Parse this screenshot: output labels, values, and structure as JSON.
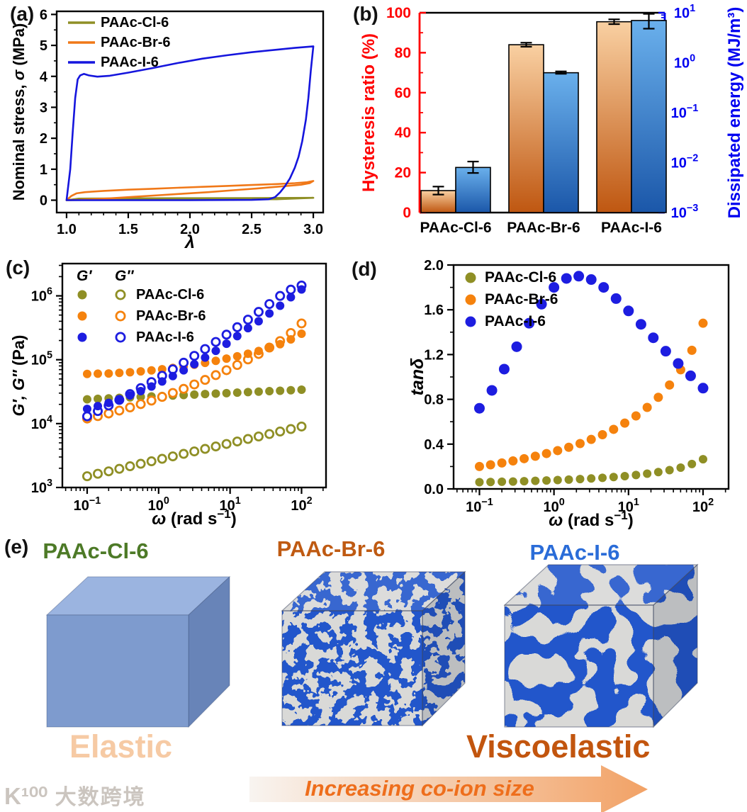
{
  "figure": {
    "labels": {
      "a": "(a)",
      "b": "(b)",
      "c": "(c)",
      "d": "(d)",
      "e": "(e)"
    }
  },
  "chart_data": [
    {
      "panel": "a",
      "type": "line",
      "title": "",
      "xlabel": "λ",
      "ylabel_parts": [
        "Nominal stress, ",
        "σ",
        " (MPa)"
      ],
      "xlim": [
        0.92,
        3.08
      ],
      "ylim": [
        -0.4,
        6.1
      ],
      "xticks": [
        1.0,
        1.5,
        2.0,
        2.5,
        3.0
      ],
      "yticks": [
        0,
        1,
        2,
        3,
        4,
        5,
        6
      ],
      "legend_position": "top-left",
      "series": [
        {
          "name": "PAAc-Cl-6",
          "color": "#8f8f25",
          "loading": [
            [
              1,
              0
            ],
            [
              1.1,
              0.05
            ],
            [
              1.5,
              0.06
            ],
            [
              2,
              0.065
            ],
            [
              2.5,
              0.07
            ],
            [
              3,
              0.075
            ]
          ],
          "unloading": [
            [
              3,
              0.075
            ],
            [
              2.7,
              0.03
            ],
            [
              2.2,
              0.02
            ],
            [
              1.7,
              0.015
            ],
            [
              1.2,
              0.01
            ],
            [
              1,
              0
            ]
          ]
        },
        {
          "name": "PAAc-Br-6",
          "color": "#f07818",
          "loading": [
            [
              1,
              0
            ],
            [
              1.04,
              0.14
            ],
            [
              1.08,
              0.22
            ],
            [
              1.15,
              0.26
            ],
            [
              1.3,
              0.3
            ],
            [
              1.5,
              0.34
            ],
            [
              1.7,
              0.37
            ],
            [
              1.9,
              0.4
            ],
            [
              2.1,
              0.43
            ],
            [
              2.3,
              0.46
            ],
            [
              2.5,
              0.49
            ],
            [
              2.7,
              0.52
            ],
            [
              2.85,
              0.55
            ],
            [
              2.95,
              0.58
            ],
            [
              3,
              0.62
            ]
          ],
          "unloading": [
            [
              3,
              0.62
            ],
            [
              2.97,
              0.55
            ],
            [
              2.9,
              0.5
            ],
            [
              2.75,
              0.45
            ],
            [
              2.55,
              0.38
            ],
            [
              2.35,
              0.32
            ],
            [
              2.15,
              0.26
            ],
            [
              1.95,
              0.21
            ],
            [
              1.75,
              0.16
            ],
            [
              1.55,
              0.11
            ],
            [
              1.35,
              0.06
            ],
            [
              1.2,
              0.03
            ],
            [
              1.1,
              0.01
            ],
            [
              1,
              0
            ]
          ]
        },
        {
          "name": "PAAc-I-6",
          "color": "#1515dd",
          "loading": [
            [
              1,
              0
            ],
            [
              1.03,
              1
            ],
            [
              1.05,
              2.2
            ],
            [
              1.07,
              3.3
            ],
            [
              1.09,
              3.9
            ],
            [
              1.11,
              4.03
            ],
            [
              1.14,
              4.08
            ],
            [
              1.18,
              4.03
            ],
            [
              1.25,
              3.99
            ],
            [
              1.35,
              4.02
            ],
            [
              1.5,
              4.12
            ],
            [
              1.7,
              4.27
            ],
            [
              1.9,
              4.43
            ],
            [
              2.1,
              4.57
            ],
            [
              2.3,
              4.68
            ],
            [
              2.5,
              4.78
            ],
            [
              2.7,
              4.86
            ],
            [
              2.85,
              4.92
            ],
            [
              3,
              4.97
            ]
          ],
          "unloading": [
            [
              3,
              4.97
            ],
            [
              2.98,
              4.2
            ],
            [
              2.96,
              3.3
            ],
            [
              2.94,
              2.6
            ],
            [
              2.91,
              1.9
            ],
            [
              2.88,
              1.4
            ],
            [
              2.85,
              1.05
            ],
            [
              2.81,
              0.7
            ],
            [
              2.77,
              0.45
            ],
            [
              2.73,
              0.25
            ],
            [
              2.69,
              0.1
            ],
            [
              2.64,
              0.03
            ],
            [
              2.5,
              0.01
            ],
            [
              2,
              0
            ],
            [
              1.5,
              0
            ],
            [
              1,
              0
            ]
          ]
        }
      ]
    },
    {
      "panel": "b",
      "type": "bar",
      "categories": [
        "PAAc-Cl-6",
        "PAAc-Br-6",
        "PAAc-I-6"
      ],
      "left_axis": {
        "label": "Hysteresis ratio (%)",
        "color": "#ff0000",
        "ticks": [
          0,
          20,
          40,
          60,
          80,
          100
        ],
        "lim": [
          0,
          100
        ]
      },
      "right_axis": {
        "label": "Dissipated energy (MJ/m³)",
        "color": "#0000f0",
        "tick_exponents": [
          -3,
          -2,
          -1,
          0,
          1
        ],
        "lim_log": [
          -3,
          1
        ]
      },
      "hysteresis_ratio": {
        "values": [
          11,
          84,
          95.5
        ],
        "err": [
          2,
          1,
          1.2
        ],
        "gradient": [
          "#f9d0a2",
          "#bf5711"
        ]
      },
      "dissipated_energy": {
        "values": [
          0.008,
          0.63,
          7.0
        ],
        "err_lo": [
          0.0062,
          0.6,
          4.8
        ],
        "err_hi": [
          0.0105,
          0.67,
          9.5
        ],
        "gradient": [
          "#6ab0ec",
          "#1b57a9"
        ]
      }
    },
    {
      "panel": "c",
      "type": "scatter",
      "xlabel_parts": [
        "ω",
        " (rad s",
        "−1",
        ")"
      ],
      "ylabel_parts": [
        "G′, G″",
        " (Pa)"
      ],
      "xscale": "log",
      "yscale": "log",
      "xlim": [
        0.045,
        220
      ],
      "ylim": [
        1000,
        3200000
      ],
      "xtick_exponents": [
        -1,
        0,
        1,
        2
      ],
      "ytick_exponents": [
        3,
        4,
        5,
        6
      ],
      "legend_headers": [
        "G′",
        "G″"
      ],
      "legend_labels": [
        "PAAc-Cl-6",
        "PAAc-Br-6",
        "PAAc-I-6"
      ],
      "x": [
        0.1,
        0.141,
        0.2,
        0.282,
        0.398,
        0.562,
        0.794,
        1.12,
        1.58,
        2.24,
        3.16,
        4.47,
        6.31,
        8.91,
        12.6,
        17.8,
        25.1,
        35.5,
        50.1,
        70.8,
        100
      ],
      "series": [
        {
          "name": "G'' PAAc-Cl-6",
          "color": "#8f8f25",
          "marker": "open",
          "y": [
            1500,
            1640,
            1790,
            1960,
            2150,
            2350,
            2570,
            2810,
            3070,
            3360,
            3670,
            4020,
            4390,
            4800,
            5250,
            5750,
            6290,
            6870,
            7520,
            8220,
            9000
          ]
        },
        {
          "name": "G' PAAc-Cl-6",
          "color": "#8f8f25",
          "marker": "filled",
          "y": [
            24000,
            24400,
            24800,
            25300,
            25700,
            26200,
            26600,
            27100,
            27500,
            28000,
            28500,
            29000,
            29500,
            30000,
            30500,
            31100,
            31600,
            32200,
            32700,
            33300,
            33900
          ]
        },
        {
          "name": "G'' PAAc-Br-6",
          "color": "#f5820d",
          "marker": "open",
          "y": [
            12000,
            13100,
            14400,
            16000,
            17900,
            20200,
            22900,
            26200,
            30200,
            35000,
            41000,
            48300,
            57400,
            68600,
            82700,
            101000,
            123000,
            155000,
            196000,
            262000,
            370000
          ]
        },
        {
          "name": "G' PAAc-Br-6",
          "color": "#f5820d",
          "marker": "filled",
          "y": [
            59900,
            60400,
            60900,
            62200,
            63700,
            65700,
            68100,
            71000,
            74500,
            78700,
            83600,
            89400,
            96100,
            104000,
            113000,
            124000,
            137000,
            155000,
            175000,
            208000,
            255000
          ]
        },
        {
          "name": "G'' PAAc-I-6",
          "color": "#1d1de0",
          "marker": "open",
          "y": [
            13000,
            15700,
            19200,
            23500,
            29000,
            35900,
            44700,
            56100,
            70800,
            89800,
            115000,
            147000,
            190000,
            247000,
            323000,
            424000,
            561000,
            745000,
            997000,
            1250000,
            1450000
          ]
        },
        {
          "name": "G' PAAc-I-6",
          "color": "#1d1de0",
          "marker": "filled",
          "y": [
            17000,
            18800,
            21100,
            24000,
            27600,
            32300,
            38100,
            45700,
            55500,
            68200,
            85100,
            108000,
            138000,
            178000,
            234000,
            312000,
            400000,
            530000,
            700000,
            950000,
            1260000
          ]
        }
      ]
    },
    {
      "panel": "d",
      "type": "scatter",
      "xlabel_parts": [
        "ω",
        " (rad s",
        "−1",
        ")"
      ],
      "ylabel": "tanδ",
      "xscale": "log",
      "yscale": "linear",
      "xlim": [
        0.045,
        220
      ],
      "ylim": [
        0,
        2.0
      ],
      "xtick_exponents": [
        -1,
        0,
        1,
        2
      ],
      "yticks": [
        "0.0",
        "0.4",
        "0.8",
        "1.2",
        "1.6",
        "2.0"
      ],
      "series": [
        {
          "name": "PAAc-Cl-6",
          "color": "#8f8f25",
          "marker": "filled",
          "r": 6,
          "x": [
            0.1,
            0.141,
            0.2,
            0.282,
            0.398,
            0.562,
            0.794,
            1.12,
            1.58,
            2.24,
            3.16,
            4.47,
            6.31,
            8.91,
            12.6,
            17.8,
            25.1,
            35.5,
            50.1,
            70.8,
            100
          ],
          "y": [
            0.06,
            0.062,
            0.064,
            0.066,
            0.069,
            0.072,
            0.075,
            0.079,
            0.083,
            0.088,
            0.093,
            0.099,
            0.106,
            0.114,
            0.124,
            0.136,
            0.15,
            0.168,
            0.19,
            0.222,
            0.265
          ]
        },
        {
          "name": "PAAc-Br-6",
          "color": "#f5820d",
          "marker": "filled",
          "r": 6.5,
          "x": [
            0.1,
            0.141,
            0.2,
            0.282,
            0.398,
            0.562,
            0.794,
            1.12,
            1.58,
            2.24,
            3.16,
            4.47,
            6.31,
            8.91,
            12.6,
            17.8,
            25.1,
            35.5,
            50.1,
            70.8,
            100
          ],
          "y": [
            0.2,
            0.215,
            0.232,
            0.25,
            0.27,
            0.292,
            0.316,
            0.342,
            0.372,
            0.405,
            0.442,
            0.484,
            0.532,
            0.588,
            0.652,
            0.728,
            0.818,
            0.928,
            1.064,
            1.238,
            1.48
          ]
        },
        {
          "name": "PAAc-I-6",
          "color": "#1d1de0",
          "marker": "filled",
          "r": 7.5,
          "x": [
            0.1,
            0.147,
            0.215,
            0.316,
            0.464,
            0.681,
            1.0,
            1.47,
            2.15,
            3.16,
            4.64,
            6.81,
            10,
            14.7,
            21.5,
            31.6,
            46.4,
            68.1,
            100
          ],
          "y": [
            0.72,
            0.88,
            1.07,
            1.27,
            1.48,
            1.65,
            1.8,
            1.88,
            1.9,
            1.87,
            1.8,
            1.7,
            1.59,
            1.47,
            1.35,
            1.23,
            1.12,
            1.01,
            0.9
          ]
        }
      ]
    }
  ],
  "panel_e": {
    "titles": [
      {
        "text": "PAAc-Cl-6",
        "color": "#4d7a27"
      },
      {
        "text": "PAAc-Br-6",
        "color": "#bf5a12"
      },
      {
        "text": "PAAc-I-6",
        "color": "#2a6cd8"
      }
    ],
    "caption_left": {
      "text": "Elastic",
      "color": "#f6caa4"
    },
    "caption_right": {
      "text": "Viscoelastic",
      "color": "#c2550e"
    },
    "arrow": {
      "text": "Increasing co-ion size",
      "text_color": "#ee6e1c",
      "gradient": [
        "#f8f4f0",
        "#f2a266"
      ]
    },
    "cube_solid": {
      "front": "#7e9bce",
      "top": "#9bb4e0",
      "side": "#6884b8"
    },
    "cube_pattern": {
      "blue": "#2256cb",
      "gray": "#d9d9d7"
    }
  },
  "watermark": {
    "logo": "K¹⁰⁰",
    "text": "大数跨境",
    "color": "#cbc5bf"
  }
}
